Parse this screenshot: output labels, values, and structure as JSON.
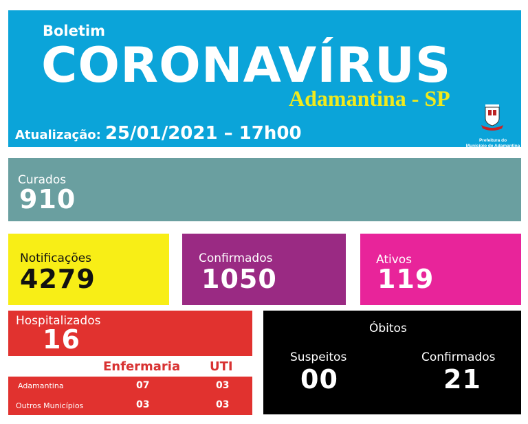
{
  "header": {
    "subtitle": "Boletim",
    "title": "CORONAVÍRUS",
    "city": "Adamantina - SP",
    "update_label": "Atualização:",
    "update_value": "25/01/2021 – 17h00",
    "logo_text_1": "Prefeitura do",
    "logo_text_2": "Município de Adamantina"
  },
  "curados": {
    "label": "Curados",
    "value": "910"
  },
  "notificacoes": {
    "label": "Notificações",
    "value": "4279"
  },
  "confirmados": {
    "label": "Confirmados",
    "value": "1050"
  },
  "ativos": {
    "label": "Ativos",
    "value": "119"
  },
  "hospitalizados": {
    "label": "Hospitalizados",
    "value": "16",
    "columns": [
      "Enfermaria",
      "UTI"
    ],
    "rows": [
      {
        "name": "Adamantina",
        "enfermaria": "07",
        "uti": "03"
      },
      {
        "name": "Outros Municípios",
        "enfermaria": "03",
        "uti": "03"
      }
    ]
  },
  "obitos": {
    "title": "Óbitos",
    "suspeitos_label": "Suspeitos",
    "suspeitos_value": "00",
    "confirmados_label": "Confirmados",
    "confirmados_value": "21"
  },
  "colors": {
    "header": "#0ba4d9",
    "curados": "#6a9fa0",
    "notificacoes": "#f8ee16",
    "confirmados": "#9a2a83",
    "ativos": "#e8249a",
    "hospitalizados": "#e1322f",
    "obitos": "#000000",
    "city": "#f1ea1c"
  }
}
